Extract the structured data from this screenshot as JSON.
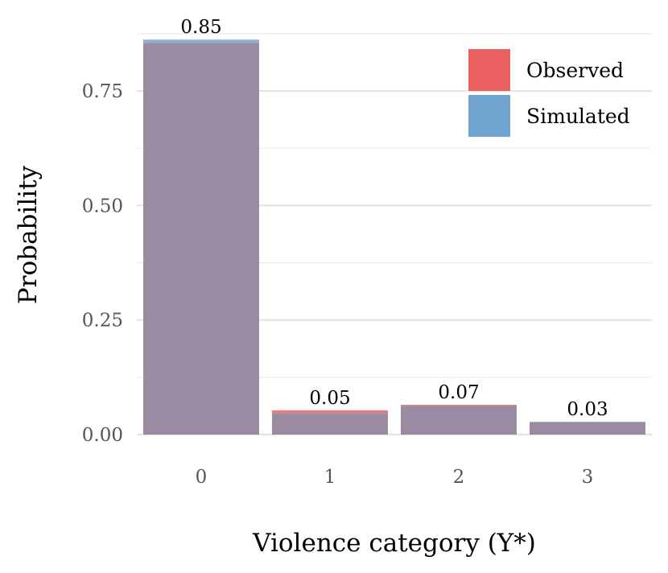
{
  "chart_data": {
    "type": "bar",
    "categories": [
      "0",
      "1",
      "2",
      "3"
    ],
    "series": [
      {
        "name": "Observed",
        "values": [
          0.855,
          0.053,
          0.065,
          0.027
        ],
        "color": "#E41A1C"
      },
      {
        "name": "Simulated",
        "values": [
          0.862,
          0.047,
          0.063,
          0.028
        ],
        "color": "#377EB8"
      }
    ],
    "overlap_color": "#9A8BA3",
    "data_labels": [
      "0.85",
      "0.05",
      "0.07",
      "0.03"
    ],
    "xlabel": "Violence category (Y*)",
    "ylabel": "Probability",
    "yticks": [
      0,
      0.25,
      0.5,
      0.75
    ],
    "ytick_labels": [
      "0.00",
      "0.25",
      "0.50",
      "0.75"
    ],
    "ylim": [
      0,
      0.875
    ],
    "grid": true,
    "legend_position": "top-right"
  }
}
